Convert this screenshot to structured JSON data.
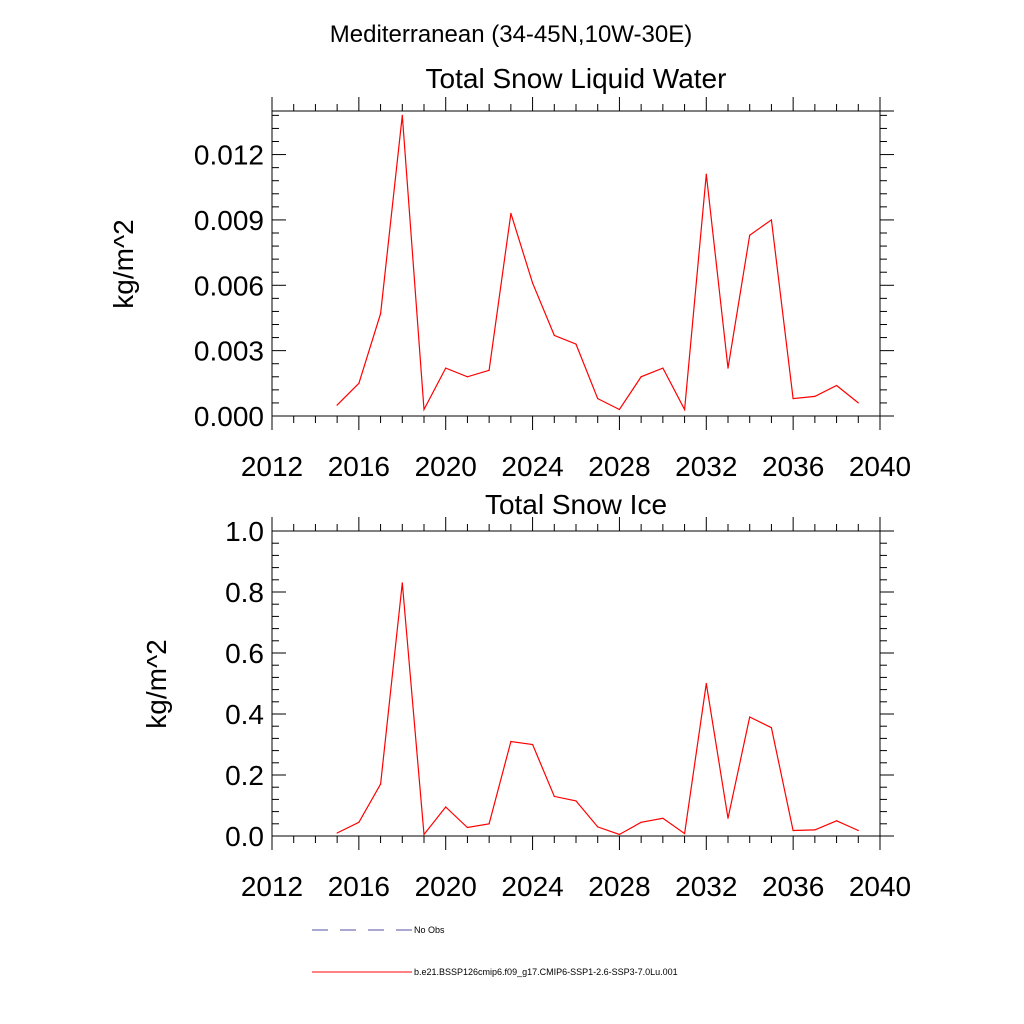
{
  "page_title": "Mediterranean (34-45N,10W-30E)",
  "colors": {
    "series": "#ff0000",
    "no_obs": "#5050a0",
    "axis": "#000000"
  },
  "legend": {
    "no_obs_label": "No Obs",
    "series_label": "b.e21.BSSP126cmip6.f09_g17.CMIP6-SSP1-2.6-SSP3-7.0Lu.001"
  },
  "chart_data": [
    {
      "type": "line",
      "title": "Total Snow Liquid Water",
      "xlabel": "",
      "ylabel": "kg/m^2",
      "xlim": [
        2012,
        2040
      ],
      "ylim": [
        0,
        0.014
      ],
      "xticks": [
        2012,
        2016,
        2020,
        2024,
        2028,
        2032,
        2036,
        2040
      ],
      "xtick_labels": [
        "2012",
        "2016",
        "2020",
        "2024",
        "2028",
        "2032",
        "2036",
        "2040"
      ],
      "yticks": [
        0,
        0.003,
        0.006,
        0.009,
        0.012
      ],
      "ytick_labels": [
        "0.000",
        "0.003",
        "0.006",
        "0.009",
        "0.012"
      ],
      "x": [
        2015,
        2016,
        2017,
        2018,
        2019,
        2020,
        2021,
        2022,
        2023,
        2024,
        2025,
        2026,
        2027,
        2028,
        2029,
        2030,
        2031,
        2032,
        2033,
        2034,
        2035,
        2036,
        2037,
        2038,
        2039
      ],
      "series": [
        {
          "values": [
            0.0005,
            0.0015,
            0.0047,
            0.0138,
            0.0003,
            0.0022,
            0.0018,
            0.0021,
            0.0093,
            0.0061,
            0.0037,
            0.0033,
            0.0008,
            0.0003,
            0.0018,
            0.0022,
            0.0003,
            0.0111,
            0.0022,
            0.0083,
            0.009,
            0.0008,
            0.0009,
            0.0014,
            0.0006
          ]
        }
      ]
    },
    {
      "type": "line",
      "title": "Total Snow Ice",
      "xlabel": "",
      "ylabel": "kg/m^2",
      "xlim": [
        2012,
        2040
      ],
      "ylim": [
        0,
        1.0
      ],
      "xticks": [
        2012,
        2016,
        2020,
        2024,
        2028,
        2032,
        2036,
        2040
      ],
      "xtick_labels": [
        "2012",
        "2016",
        "2020",
        "2024",
        "2028",
        "2032",
        "2036",
        "2040"
      ],
      "yticks": [
        0,
        0.2,
        0.4,
        0.6,
        0.8,
        1.0
      ],
      "ytick_labels": [
        "0.0",
        "0.2",
        "0.4",
        "0.6",
        "0.8",
        "1.0"
      ],
      "x": [
        2015,
        2016,
        2017,
        2018,
        2019,
        2020,
        2021,
        2022,
        2023,
        2024,
        2025,
        2026,
        2027,
        2028,
        2029,
        2030,
        2031,
        2032,
        2033,
        2034,
        2035,
        2036,
        2037,
        2038,
        2039
      ],
      "series": [
        {
          "values": [
            0.01,
            0.045,
            0.17,
            0.83,
            0.005,
            0.095,
            0.028,
            0.04,
            0.31,
            0.3,
            0.13,
            0.115,
            0.03,
            0.005,
            0.045,
            0.058,
            0.008,
            0.5,
            0.058,
            0.39,
            0.355,
            0.018,
            0.02,
            0.05,
            0.018
          ]
        }
      ]
    }
  ]
}
